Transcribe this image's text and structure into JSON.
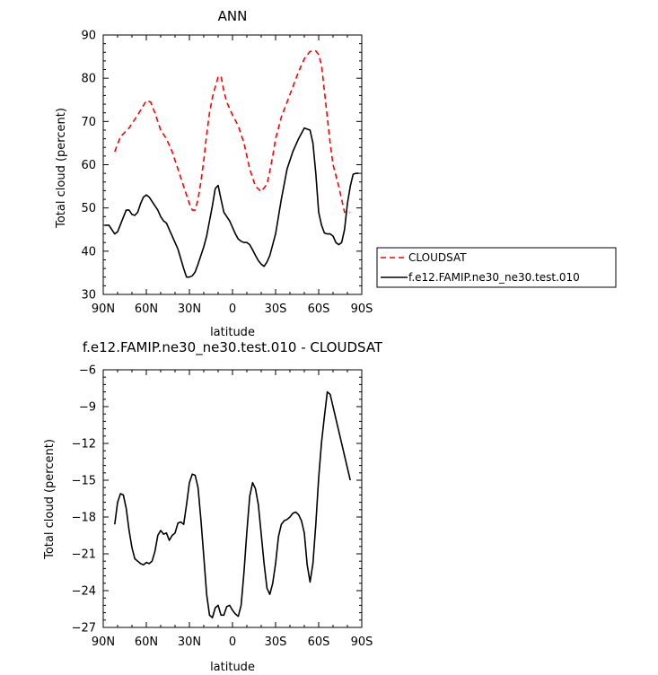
{
  "chart_data": [
    {
      "type": "line",
      "title": "ANN",
      "xlabel": "latitude",
      "ylabel": "Total cloud (percent)",
      "xlim": [
        90,
        -90
      ],
      "ylim": [
        30,
        90
      ],
      "xticks": [
        90,
        60,
        30,
        0,
        -30,
        -60,
        -90
      ],
      "xticklabels": [
        "90N",
        "60N",
        "30N",
        "0",
        "30S",
        "60S",
        "90S"
      ],
      "yticks": [
        30,
        40,
        50,
        60,
        70,
        80,
        90
      ],
      "yticklabels": [
        "30",
        "40",
        "50",
        "60",
        "70",
        "80",
        "90"
      ],
      "legend_position": "right",
      "series": [
        {
          "name": "CLOUDSAT",
          "color": "#ff0000",
          "style": "dashed",
          "x": [
            82,
            78,
            72,
            66,
            60,
            57,
            54,
            50,
            46,
            42,
            38,
            34,
            30,
            28,
            26,
            24,
            22,
            20,
            18,
            16,
            14,
            12,
            10,
            8,
            6,
            4,
            2,
            0,
            -4,
            -8,
            -12,
            -16,
            -20,
            -24,
            -26,
            -28,
            -30,
            -34,
            -38,
            -42,
            -46,
            -50,
            -54,
            -58,
            -60,
            -62,
            -64,
            -66,
            -68,
            -70,
            -74,
            -78,
            -82
          ],
          "y": [
            63,
            66.5,
            68.5,
            71.5,
            74.8,
            74.5,
            72,
            68,
            66,
            63,
            59,
            55,
            51,
            49.5,
            49.5,
            52,
            56,
            61,
            67,
            72,
            75.5,
            78,
            80.3,
            80.5,
            77,
            74.5,
            73,
            71.5,
            69,
            65,
            59,
            55,
            53.8,
            55.5,
            58.5,
            62,
            66,
            71,
            74.5,
            78,
            81.5,
            84.5,
            86.2,
            86.3,
            85.5,
            83,
            77,
            71,
            65,
            60,
            55,
            49,
            49
          ]
        },
        {
          "name": "f.e12.FAMIP.ne30_ne30.test.010",
          "color": "#000000",
          "style": "solid",
          "x": [
            89,
            86,
            84,
            82,
            80,
            77,
            74,
            72,
            70,
            68,
            66,
            64,
            62,
            60,
            58,
            56,
            54,
            52,
            50,
            48,
            46,
            44,
            42,
            38,
            34,
            32,
            30,
            28,
            26,
            24,
            22,
            20,
            18,
            16,
            14,
            12,
            10,
            8,
            6,
            4,
            2,
            0,
            -2,
            -4,
            -6,
            -8,
            -10,
            -12,
            -14,
            -16,
            -18,
            -20,
            -22,
            -24,
            -26,
            -28,
            -30,
            -32,
            -34,
            -38,
            -42,
            -46,
            -50,
            -54,
            -56,
            -58,
            -60,
            -62,
            -64,
            -66,
            -68,
            -70,
            -72,
            -74,
            -76,
            -78,
            -80,
            -82,
            -84,
            -86,
            -88
          ],
          "y": [
            46,
            46,
            45,
            44,
            44.5,
            47,
            49.5,
            49.5,
            48.5,
            48.3,
            49,
            51,
            52.5,
            53,
            52.5,
            51.5,
            50.5,
            49.5,
            48,
            47,
            46.5,
            45,
            43.5,
            40.5,
            36,
            34,
            34,
            34.3,
            35.2,
            37,
            39,
            41,
            43.5,
            47,
            50.5,
            54.5,
            55.2,
            52,
            49,
            48,
            47,
            45.5,
            44,
            42.8,
            42.3,
            42,
            42,
            41.5,
            40.3,
            39,
            37.8,
            37,
            36.5,
            37.5,
            39,
            41.5,
            44,
            48,
            52,
            59,
            63,
            66,
            68.5,
            68,
            65,
            58,
            49,
            46,
            44.2,
            44,
            44,
            43.5,
            42,
            41.5,
            42,
            45,
            51,
            55,
            57.8,
            58,
            58
          ]
        }
      ]
    },
    {
      "type": "line",
      "title": "f.e12.FAMIP.ne30_ne30.test.010 - CLOUDSAT",
      "xlabel": "latitude",
      "ylabel": "Total cloud (percent)",
      "xlim": [
        90,
        -90
      ],
      "ylim": [
        -27,
        -6
      ],
      "xticks": [
        90,
        60,
        30,
        0,
        -30,
        -60,
        -90
      ],
      "xticklabels": [
        "90N",
        "60N",
        "30N",
        "0",
        "30S",
        "60S",
        "90S"
      ],
      "yticks": [
        -27,
        -24,
        -21,
        -18,
        -15,
        -12,
        -9,
        -6
      ],
      "yticklabels": [
        "−27",
        "−24",
        "−21",
        "−18",
        "−15",
        "−12",
        "−9",
        "−6"
      ],
      "series": [
        {
          "color": "#000000",
          "style": "solid",
          "x": [
            82,
            80,
            78,
            76,
            74,
            72,
            70,
            68,
            66,
            64,
            62,
            60,
            58,
            56,
            54,
            52,
            50,
            48,
            46,
            44,
            42,
            40,
            38,
            36,
            34,
            32,
            30,
            28,
            26,
            24,
            22,
            20,
            18,
            16,
            14,
            12,
            10,
            8,
            6,
            4,
            2,
            0,
            -2,
            -4,
            -6,
            -8,
            -10,
            -12,
            -14,
            -16,
            -18,
            -20,
            -22,
            -24,
            -26,
            -28,
            -30,
            -32,
            -34,
            -36,
            -38,
            -40,
            -42,
            -44,
            -46,
            -48,
            -50,
            -52,
            -54,
            -56,
            -58,
            -60,
            -62,
            -64,
            -66,
            -68,
            -70,
            -72,
            -74,
            -76,
            -78,
            -80,
            -82
          ],
          "y": [
            -18.6,
            -16.8,
            -16.1,
            -16.2,
            -17.3,
            -19.1,
            -20.5,
            -21.4,
            -21.6,
            -21.8,
            -21.9,
            -21.7,
            -21.8,
            -21.6,
            -20.8,
            -19.5,
            -19.1,
            -19.4,
            -19.3,
            -19.9,
            -19.5,
            -19.3,
            -18.5,
            -18.4,
            -18.6,
            -17.0,
            -15.2,
            -14.5,
            -14.6,
            -15.6,
            -18.2,
            -21.2,
            -24.3,
            -26.0,
            -26.2,
            -25.4,
            -25.2,
            -26.0,
            -26.0,
            -25.3,
            -25.2,
            -25.6,
            -25.9,
            -26.1,
            -25.2,
            -22.5,
            -19.2,
            -16.3,
            -15.2,
            -15.7,
            -17.0,
            -19.4,
            -21.8,
            -23.8,
            -24.3,
            -23.4,
            -21.8,
            -19.6,
            -18.6,
            -18.3,
            -18.2,
            -18.0,
            -17.7,
            -17.6,
            -17.8,
            -18.3,
            -19.3,
            -21.9,
            -23.3,
            -21.8,
            -18.6,
            -14.8,
            -11.9,
            -9.8,
            -7.8,
            -8.0,
            -9.0,
            -10.0,
            -11.0,
            -12.0,
            -13.0,
            -14.0,
            -15.0
          ]
        }
      ]
    }
  ]
}
